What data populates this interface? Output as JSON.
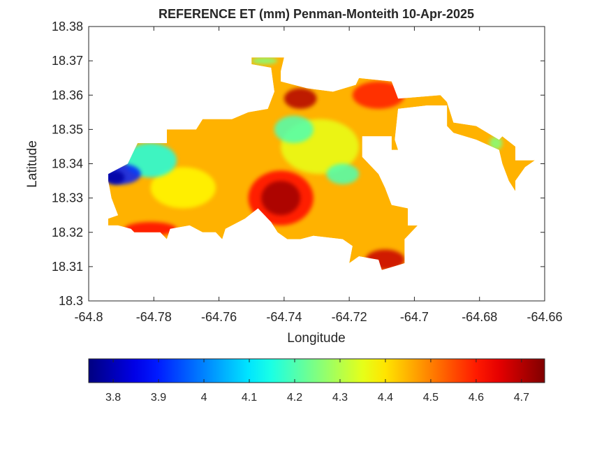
{
  "chart_data": {
    "type": "contourf",
    "title": "REFERENCE ET (mm) Penman-Monteith 10-Apr-2025",
    "xlabel": "Longitude",
    "ylabel": "Latitude",
    "xlim": [
      -64.8,
      -64.66
    ],
    "xticks": [
      -64.8,
      -64.78,
      -64.76,
      -64.74,
      -64.72,
      -64.7,
      -64.68,
      -64.66
    ],
    "ylim": [
      18.3,
      18.38
    ],
    "yticks": [
      18.3,
      18.31,
      18.32,
      18.33,
      18.34,
      18.35,
      18.36,
      18.37,
      18.38
    ],
    "colormap": "jet",
    "clim": [
      3.746,
      4.751
    ],
    "cticks": [
      3.8,
      3.9,
      4,
      4.1,
      4.2,
      4.3,
      4.4,
      4.5,
      4.6,
      4.7
    ],
    "outline": {
      "value": 4.45,
      "polygon": [
        [
          -64.794,
          18.337
        ],
        [
          -64.788,
          18.34
        ],
        [
          -64.785,
          18.346
        ],
        [
          -64.776,
          18.346
        ],
        [
          -64.776,
          18.35
        ],
        [
          -64.767,
          18.35
        ],
        [
          -64.765,
          18.353
        ],
        [
          -64.756,
          18.353
        ],
        [
          -64.751,
          18.355
        ],
        [
          -64.745,
          18.356
        ],
        [
          -64.743,
          18.361
        ],
        [
          -64.744,
          18.368
        ],
        [
          -64.75,
          18.369
        ],
        [
          -64.75,
          18.371
        ],
        [
          -64.74,
          18.371
        ],
        [
          -64.741,
          18.367
        ],
        [
          -64.741,
          18.364
        ],
        [
          -64.733,
          18.362
        ],
        [
          -64.725,
          18.361
        ],
        [
          -64.718,
          18.363
        ],
        [
          -64.717,
          18.365
        ],
        [
          -64.707,
          18.364
        ],
        [
          -64.705,
          18.359
        ],
        [
          -64.692,
          18.36
        ],
        [
          -64.69,
          18.358
        ],
        [
          -64.688,
          18.352
        ],
        [
          -64.681,
          18.351
        ],
        [
          -64.674,
          18.347
        ],
        [
          -64.673,
          18.348
        ],
        [
          -64.669,
          18.345
        ],
        [
          -64.669,
          18.341
        ],
        [
          -64.663,
          18.341
        ],
        [
          -64.666,
          18.339
        ],
        [
          -64.669,
          18.335
        ],
        [
          -64.669,
          18.332
        ],
        [
          -64.671,
          18.335
        ],
        [
          -64.673,
          18.34
        ],
        [
          -64.674,
          18.344
        ],
        [
          -64.681,
          18.347
        ],
        [
          -64.688,
          18.349
        ],
        [
          -64.69,
          18.351
        ],
        [
          -64.69,
          18.357
        ],
        [
          -64.696,
          18.357
        ],
        [
          -64.705,
          18.356
        ],
        [
          -64.706,
          18.347
        ],
        [
          -64.705,
          18.344
        ],
        [
          -64.707,
          18.344
        ],
        [
          -64.707,
          18.348
        ],
        [
          -64.716,
          18.348
        ],
        [
          -64.716,
          18.342
        ],
        [
          -64.711,
          18.337
        ],
        [
          -64.709,
          18.333
        ],
        [
          -64.707,
          18.328
        ],
        [
          -64.702,
          18.327
        ],
        [
          -64.702,
          18.322
        ],
        [
          -64.699,
          18.322
        ],
        [
          -64.703,
          18.318
        ],
        [
          -64.703,
          18.311
        ],
        [
          -64.71,
          18.309
        ],
        [
          -64.711,
          18.312
        ],
        [
          -64.717,
          18.313
        ],
        [
          -64.72,
          18.311
        ],
        [
          -64.719,
          18.316
        ],
        [
          -64.722,
          18.318
        ],
        [
          -64.731,
          18.319
        ],
        [
          -64.735,
          18.318
        ],
        [
          -64.739,
          18.318
        ],
        [
          -64.742,
          18.32
        ],
        [
          -64.744,
          18.323
        ],
        [
          -64.748,
          18.327
        ],
        [
          -64.752,
          18.324
        ],
        [
          -64.758,
          18.321
        ],
        [
          -64.759,
          18.318
        ],
        [
          -64.761,
          18.32
        ],
        [
          -64.765,
          18.32
        ],
        [
          -64.769,
          18.322
        ],
        [
          -64.775,
          18.321
        ],
        [
          -64.776,
          18.318
        ],
        [
          -64.778,
          18.32
        ],
        [
          -64.786,
          18.32
        ],
        [
          -64.787,
          18.321
        ],
        [
          -64.791,
          18.322
        ],
        [
          -64.794,
          18.322
        ],
        [
          -64.794,
          18.324
        ],
        [
          -64.791,
          18.325
        ],
        [
          -64.793,
          18.33
        ],
        [
          -64.794,
          18.335
        ]
      ]
    },
    "spots": [
      {
        "lon": -64.729,
        "lat": 18.345,
        "rx": 0.012,
        "ry": 0.008,
        "value": 4.35
      },
      {
        "lon": -64.771,
        "lat": 18.333,
        "rx": 0.01,
        "ry": 0.006,
        "value": 4.38
      },
      {
        "lon": -64.781,
        "lat": 18.341,
        "rx": 0.008,
        "ry": 0.005,
        "value": 4.15
      },
      {
        "lon": -64.79,
        "lat": 18.337,
        "rx": 0.006,
        "ry": 0.003,
        "value": 3.9
      },
      {
        "lon": -64.792,
        "lat": 18.336,
        "rx": 0.003,
        "ry": 0.002,
        "value": 3.78
      },
      {
        "lon": -64.737,
        "lat": 18.35,
        "rx": 0.006,
        "ry": 0.004,
        "value": 4.2
      },
      {
        "lon": -64.722,
        "lat": 18.337,
        "rx": 0.005,
        "ry": 0.003,
        "value": 4.2
      },
      {
        "lon": -64.741,
        "lat": 18.33,
        "rx": 0.01,
        "ry": 0.008,
        "value": 4.62
      },
      {
        "lon": -64.741,
        "lat": 18.33,
        "rx": 0.006,
        "ry": 0.005,
        "value": 4.72
      },
      {
        "lon": -64.711,
        "lat": 18.36,
        "rx": 0.008,
        "ry": 0.004,
        "value": 4.6
      },
      {
        "lon": -64.735,
        "lat": 18.359,
        "rx": 0.005,
        "ry": 0.003,
        "value": 4.7
      },
      {
        "lon": -64.709,
        "lat": 18.312,
        "rx": 0.006,
        "ry": 0.003,
        "value": 4.68
      },
      {
        "lon": -64.781,
        "lat": 18.321,
        "rx": 0.008,
        "ry": 0.002,
        "value": 4.62
      },
      {
        "lon": -64.746,
        "lat": 18.37,
        "rx": 0.004,
        "ry": 0.001,
        "value": 4.25
      },
      {
        "lon": -64.675,
        "lat": 18.346,
        "rx": 0.002,
        "ry": 0.002,
        "value": 4.25
      }
    ]
  }
}
